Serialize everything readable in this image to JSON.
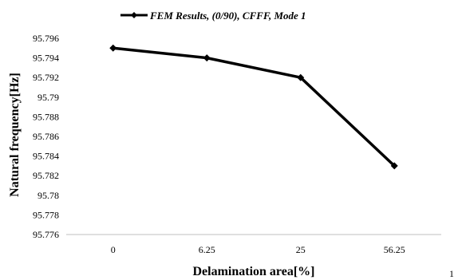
{
  "chart_data": {
    "type": "line",
    "title": "",
    "xlabel": "Delamination area[%]",
    "ylabel": "Natural frequency[Hz]",
    "categories": [
      "0",
      "6.25",
      "25",
      "56.25"
    ],
    "series": [
      {
        "name": "FEM Results, (0/90), CFFF, Mode 1",
        "values": [
          95.795,
          95.794,
          95.792,
          95.783
        ]
      }
    ],
    "ylim": [
      95.776,
      95.796
    ],
    "y_ticks": [
      "95.776",
      "95.778",
      "95.78",
      "95.782",
      "95.784",
      "95.786",
      "95.788",
      "95.79",
      "95.792",
      "95.794",
      "95.796"
    ],
    "grid": false,
    "legend_position": "top",
    "line_color": "#000000"
  },
  "corner_mark": "1"
}
